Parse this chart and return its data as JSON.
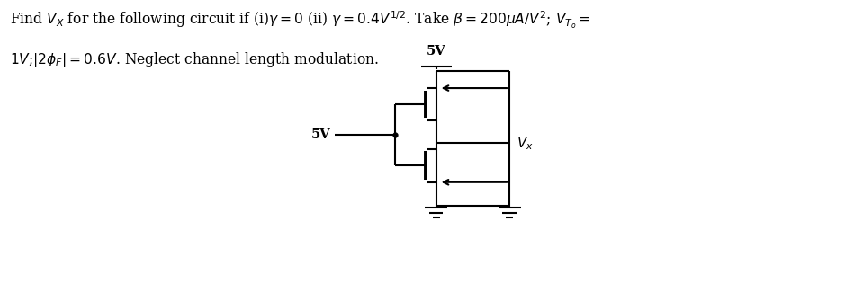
{
  "title_line1": "Find $V_X$ for the following circuit if (i)$\\gamma = 0$ (ii) $\\gamma = 0.4V^{1/2}$. Take $\\beta = 200\\mu A/V^2$; $V_{T_o} =$",
  "title_line2": "$1V$;$|2\\phi_F| = 0.6V$. Neglect channel length modulation.",
  "bg_color": "#ffffff",
  "text_color": "#000000",
  "line_color": "#000000",
  "vdd_label": "5V",
  "vg_label": "5V",
  "vx_label": "$V_x$",
  "fig_width": 9.6,
  "fig_height": 3.25,
  "dpi": 100,
  "lw": 1.5,
  "lw_thick": 2.8
}
